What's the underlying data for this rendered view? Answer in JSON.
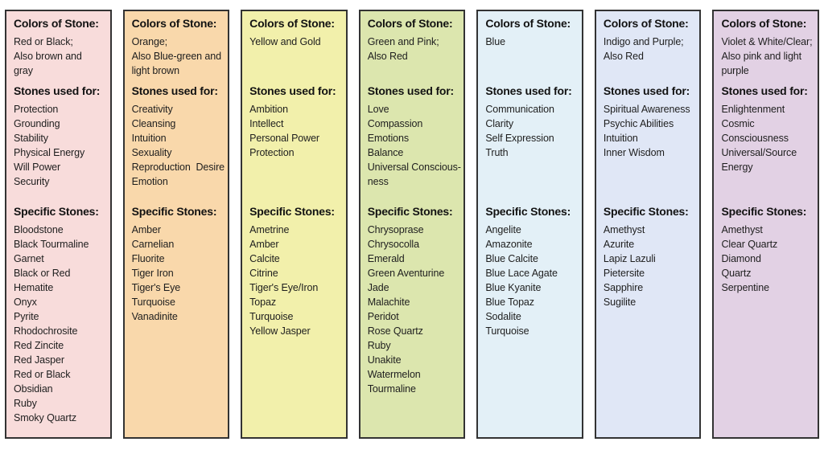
{
  "border_color": "#333333",
  "panels": [
    {
      "bg": "#f8dcdb",
      "colors_heading": "Colors of Stone:",
      "colors_lines": [
        "Red or Black;",
        "Also brown and",
        "gray"
      ],
      "used_heading": "Stones used for:",
      "used_lines": [
        "Protection",
        "Grounding",
        "Stability",
        "Physical Energy",
        "Will Power",
        "Security"
      ],
      "specific_heading": "Specific Stones:",
      "specific_lines": [
        "Bloodstone",
        "Black Tourmaline",
        "Garnet",
        "Black or Red",
        "Hematite",
        "Onyx",
        "Pyrite",
        "Rhodochrosite",
        "Red Zincite",
        "Red Jasper",
        "Red or Black",
        "Obsidian",
        "Ruby",
        "Smoky Quartz"
      ]
    },
    {
      "bg": "#f9d8ab",
      "colors_heading": "Colors of Stone:",
      "colors_lines": [
        "Orange;",
        "Also Blue-green and",
        "light brown"
      ],
      "used_heading": "Stones used for:",
      "used_lines": [
        "Creativity",
        "Cleansing",
        "Intuition",
        "Sexuality",
        "Reproduction  Desire",
        "Emotion"
      ],
      "specific_heading": "Specific Stones:",
      "specific_lines": [
        "Amber",
        "Carnelian",
        "Fluorite",
        "Tiger Iron",
        "Tiger's Eye",
        "Turquoise",
        "Vanadinite"
      ]
    },
    {
      "bg": "#f2f0ab",
      "colors_heading": "Colors of Stone:",
      "colors_lines": [
        "Yellow and Gold"
      ],
      "used_heading": "Stones used for:",
      "used_lines": [
        "Ambition",
        "Intellect",
        "Personal Power",
        "Protection"
      ],
      "specific_heading": "Specific Stones:",
      "specific_lines": [
        "Ametrine",
        "Amber",
        "Calcite",
        "Citrine",
        "Tiger's Eye/Iron",
        "Topaz",
        "Turquoise",
        "Yellow Jasper"
      ]
    },
    {
      "bg": "#dce6ae",
      "colors_heading": "Colors of Stone:",
      "colors_lines": [
        "Green and Pink;",
        "Also Red"
      ],
      "used_heading": "Stones used for:",
      "used_lines": [
        "Love",
        "Compassion",
        "Emotions",
        "Balance",
        "Universal Conscious-",
        "ness"
      ],
      "specific_heading": "Specific Stones:",
      "specific_lines": [
        "Chrysoprase",
        "Chrysocolla",
        "Emerald",
        "Green Aventurine",
        "Jade",
        "Malachite",
        "Peridot",
        "Rose Quartz",
        "Ruby",
        "Unakite",
        "Watermelon",
        "Tourmaline"
      ]
    },
    {
      "bg": "#e3f0f7",
      "colors_heading": "Colors of Stone:",
      "colors_lines": [
        "Blue"
      ],
      "used_heading": "Stones used for:",
      "used_lines": [
        "Communication",
        "Clarity",
        "Self Expression",
        "Truth"
      ],
      "specific_heading": "Specific Stones:",
      "specific_lines": [
        "Angelite",
        "Amazonite",
        "Blue Calcite",
        "Blue Lace Agate",
        "Blue Kyanite",
        "Blue Topaz",
        "Sodalite",
        "Turquoise"
      ]
    },
    {
      "bg": "#e0e7f6",
      "colors_heading": "Colors of Stone:",
      "colors_lines": [
        "Indigo and Purple;",
        "Also Red"
      ],
      "used_heading": "Stones used for:",
      "used_lines": [
        "Spiritual Awareness",
        "Psychic Abilities",
        "Intuition",
        "Inner Wisdom"
      ],
      "specific_heading": "Specific Stones:",
      "specific_lines": [
        "Amethyst",
        "Azurite",
        "Lapiz Lazuli",
        "Pietersite",
        "Sapphire",
        "Sugilite"
      ]
    },
    {
      "bg": "#e2d1e4",
      "colors_heading": "Colors of Stone:",
      "colors_lines": [
        "Violet & White/Clear;",
        "Also pink and light",
        "purple"
      ],
      "used_heading": "Stones used for:",
      "used_lines": [
        "Enlightenment",
        "Cosmic",
        "Consciousness",
        "Universal/Source",
        "Energy"
      ],
      "specific_heading": "Specific Stones:",
      "specific_lines": [
        "Amethyst",
        "Clear Quartz",
        "Diamond",
        "Quartz",
        "Serpentine"
      ]
    }
  ]
}
